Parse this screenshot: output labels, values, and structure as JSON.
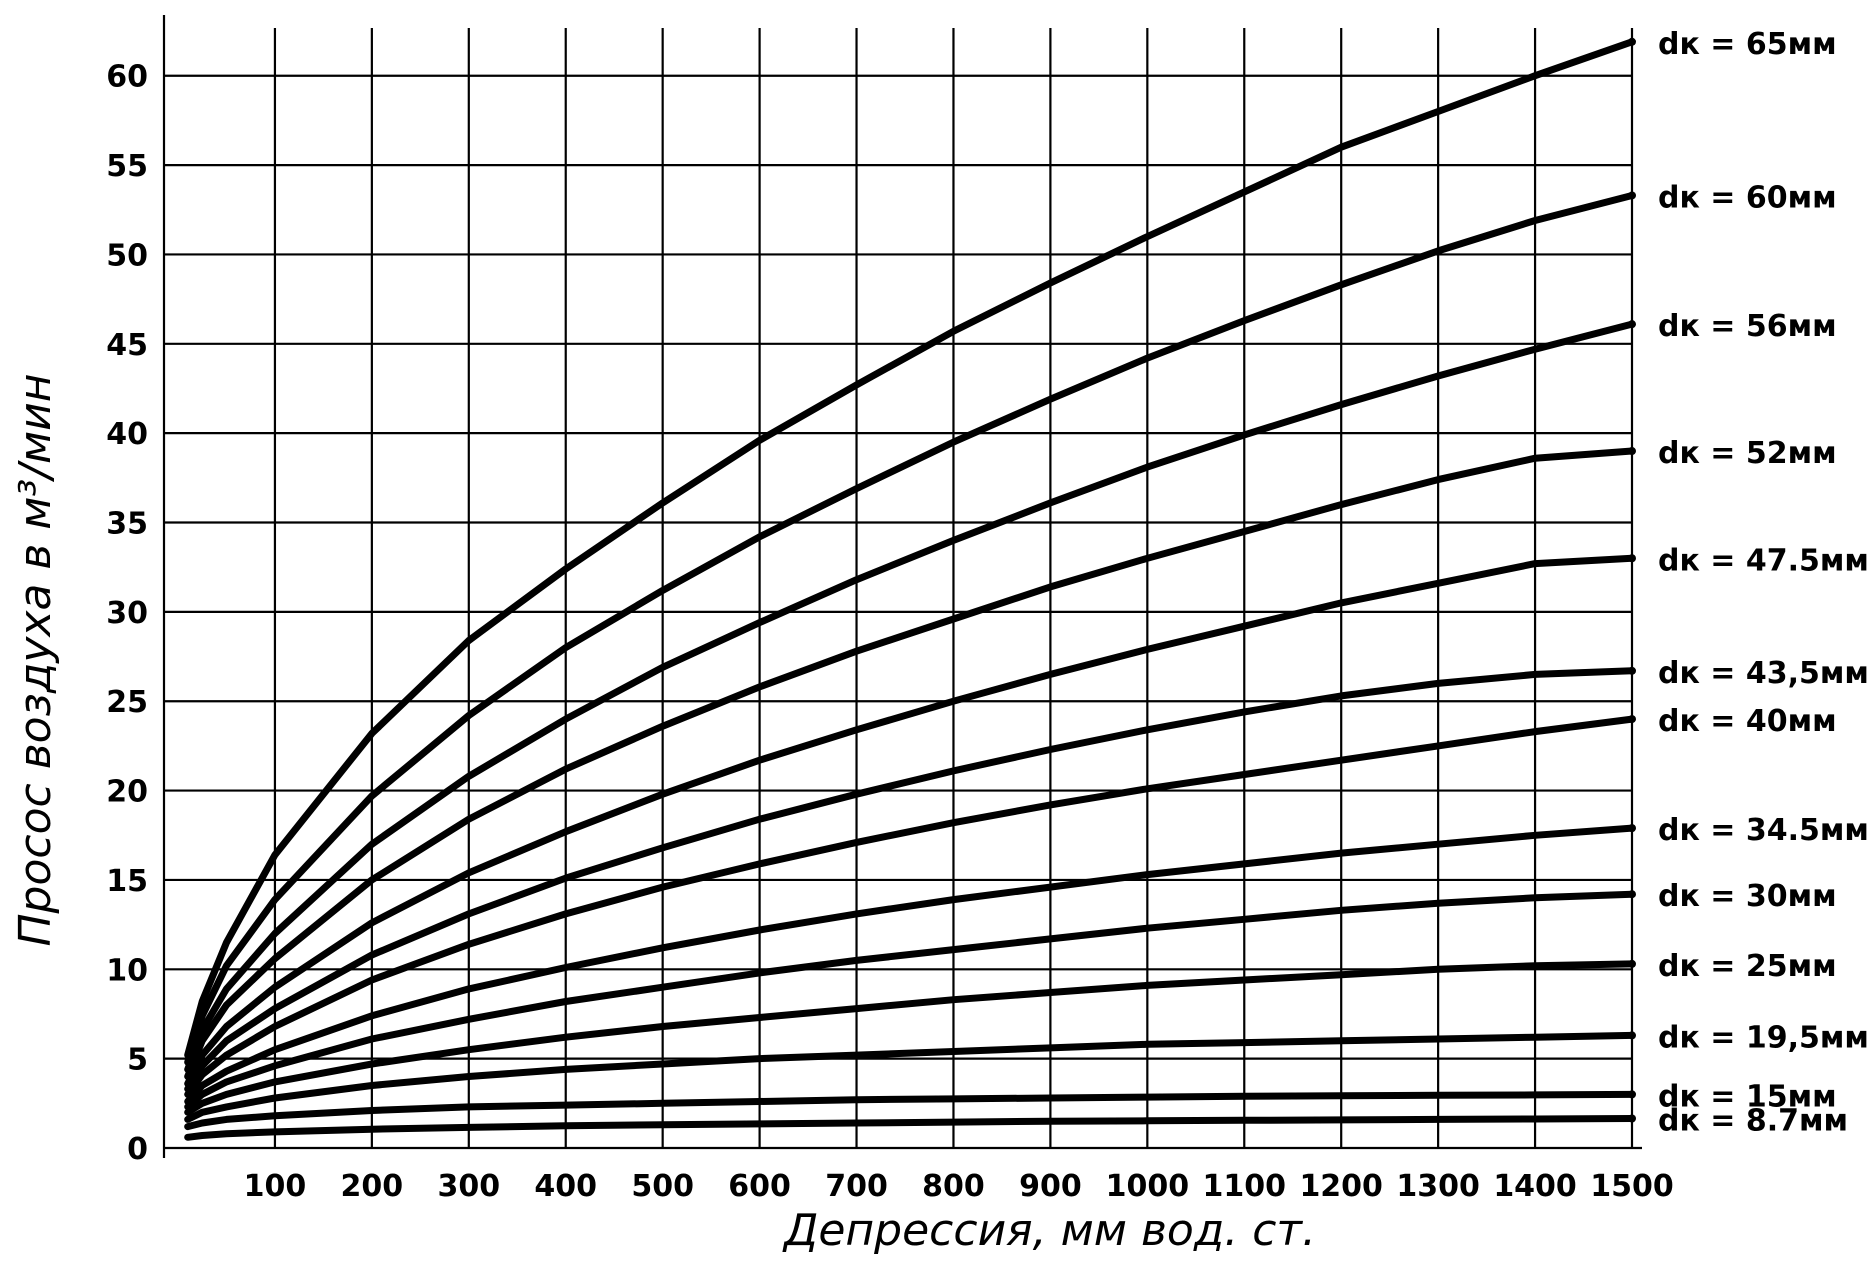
{
  "chart_data": {
    "type": "line",
    "title": "",
    "xlabel": "Депрессия,  мм вод. ст.",
    "ylabel": "Просос воздуха в м³/мин",
    "xlim": [
      0,
      1500
    ],
    "ylim": [
      0,
      62
    ],
    "grid": true,
    "x_ticks": [
      {
        "value": 100,
        "label": "100"
      },
      {
        "value": 200,
        "label": "200"
      },
      {
        "value": 300,
        "label": "300"
      },
      {
        "value": 400,
        "label": "400"
      },
      {
        "value": 500,
        "label": "500"
      },
      {
        "value": 600,
        "label": "600"
      },
      {
        "value": 700,
        "label": "700"
      },
      {
        "value": 800,
        "label": "800"
      },
      {
        "value": 900,
        "label": "900"
      },
      {
        "value": 1000,
        "label": "1000"
      },
      {
        "value": 1100,
        "label": "1100"
      },
      {
        "value": 1200,
        "label": "1200"
      },
      {
        "value": 1300,
        "label": "1300"
      },
      {
        "value": 1400,
        "label": "1400"
      },
      {
        "value": 1500,
        "label": "1500"
      }
    ],
    "y_ticks": [
      {
        "value": 0,
        "label": "0"
      },
      {
        "value": 5,
        "label": "5"
      },
      {
        "value": 10,
        "label": "10"
      },
      {
        "value": 15,
        "label": "15"
      },
      {
        "value": 20,
        "label": "20"
      },
      {
        "value": 25,
        "label": "25"
      },
      {
        "value": 30,
        "label": "30"
      },
      {
        "value": 35,
        "label": "35"
      },
      {
        "value": 40,
        "label": "40"
      },
      {
        "value": 45,
        "label": "45"
      },
      {
        "value": 50,
        "label": "50"
      },
      {
        "value": 55,
        "label": "55"
      },
      {
        "value": 60,
        "label": "60"
      }
    ],
    "x": [
      10,
      25,
      50,
      100,
      200,
      300,
      400,
      500,
      600,
      700,
      800,
      900,
      1000,
      1100,
      1200,
      1300,
      1400,
      1500
    ],
    "series": [
      {
        "name": "dк = 65мм",
        "values": [
          5.2,
          8.2,
          11.5,
          16.4,
          23.2,
          28.4,
          32.4,
          36.1,
          39.6,
          42.7,
          45.7,
          48.4,
          51.0,
          53.5,
          56.0,
          58.0,
          60.0,
          61.9
        ]
      },
      {
        "name": "dк = 60мм",
        "values": [
          4.8,
          7.4,
          10.2,
          13.9,
          19.7,
          24.2,
          28.0,
          31.2,
          34.2,
          36.9,
          39.5,
          41.9,
          44.2,
          46.3,
          48.3,
          50.2,
          51.9,
          53.3
        ]
      },
      {
        "name": "dк = 56мм",
        "values": [
          4.4,
          6.6,
          8.9,
          12.0,
          17.0,
          20.8,
          24.0,
          26.9,
          29.4,
          31.8,
          34.0,
          36.1,
          38.1,
          39.9,
          41.6,
          43.2,
          44.7,
          46.1
        ]
      },
      {
        "name": "dк = 52мм",
        "values": [
          4.0,
          6.0,
          8.0,
          10.6,
          15.0,
          18.4,
          21.2,
          23.6,
          25.8,
          27.8,
          29.6,
          31.4,
          33.0,
          34.5,
          36.0,
          37.4,
          38.6,
          39.0
        ]
      },
      {
        "name": "dк = 47.5мм",
        "values": [
          3.6,
          5.2,
          6.8,
          9.0,
          12.6,
          15.4,
          17.7,
          19.8,
          21.7,
          23.4,
          25.0,
          26.5,
          27.9,
          29.2,
          30.5,
          31.6,
          32.7,
          33.0
        ]
      },
      {
        "name": "dк = 43,5мм",
        "values": [
          3.3,
          4.6,
          6.0,
          7.8,
          10.8,
          13.1,
          15.1,
          16.8,
          18.4,
          19.8,
          21.1,
          22.3,
          23.4,
          24.4,
          25.3,
          26.0,
          26.5,
          26.7
        ]
      },
      {
        "name": "dк = 40мм",
        "values": [
          3.0,
          4.1,
          5.2,
          6.8,
          9.4,
          11.4,
          13.1,
          14.6,
          15.9,
          17.1,
          18.2,
          19.2,
          20.1,
          20.9,
          21.7,
          22.5,
          23.3,
          24.0
        ]
      },
      {
        "name": "dк = 34.5мм",
        "values": [
          2.6,
          3.5,
          4.3,
          5.5,
          7.4,
          8.9,
          10.1,
          11.2,
          12.2,
          13.1,
          13.9,
          14.6,
          15.3,
          15.9,
          16.5,
          17.0,
          17.5,
          17.9
        ]
      },
      {
        "name": "dк = 30мм",
        "values": [
          2.3,
          3.0,
          3.7,
          4.6,
          6.1,
          7.2,
          8.2,
          9.0,
          9.8,
          10.5,
          11.1,
          11.7,
          12.3,
          12.8,
          13.3,
          13.7,
          14.0,
          14.2
        ]
      },
      {
        "name": "dк = 25мм",
        "values": [
          2.0,
          2.5,
          3.0,
          3.7,
          4.7,
          5.5,
          6.2,
          6.8,
          7.3,
          7.8,
          8.3,
          8.7,
          9.1,
          9.4,
          9.7,
          10.0,
          10.2,
          10.3
        ]
      },
      {
        "name": "dк = 19,5мм",
        "values": [
          1.6,
          2.0,
          2.3,
          2.8,
          3.5,
          4.0,
          4.4,
          4.7,
          5.0,
          5.2,
          5.4,
          5.6,
          5.8,
          5.9,
          6.0,
          6.1,
          6.2,
          6.3
        ]
      },
      {
        "name": "dк = 15мм",
        "values": [
          1.2,
          1.4,
          1.6,
          1.8,
          2.1,
          2.3,
          2.4,
          2.5,
          2.6,
          2.7,
          2.75,
          2.8,
          2.85,
          2.9,
          2.92,
          2.95,
          2.97,
          3.0
        ]
      },
      {
        "name": "dк = 8.7мм",
        "values": [
          0.6,
          0.7,
          0.8,
          0.9,
          1.05,
          1.15,
          1.25,
          1.3,
          1.35,
          1.4,
          1.45,
          1.5,
          1.52,
          1.55,
          1.57,
          1.6,
          1.62,
          1.65
        ]
      }
    ]
  }
}
